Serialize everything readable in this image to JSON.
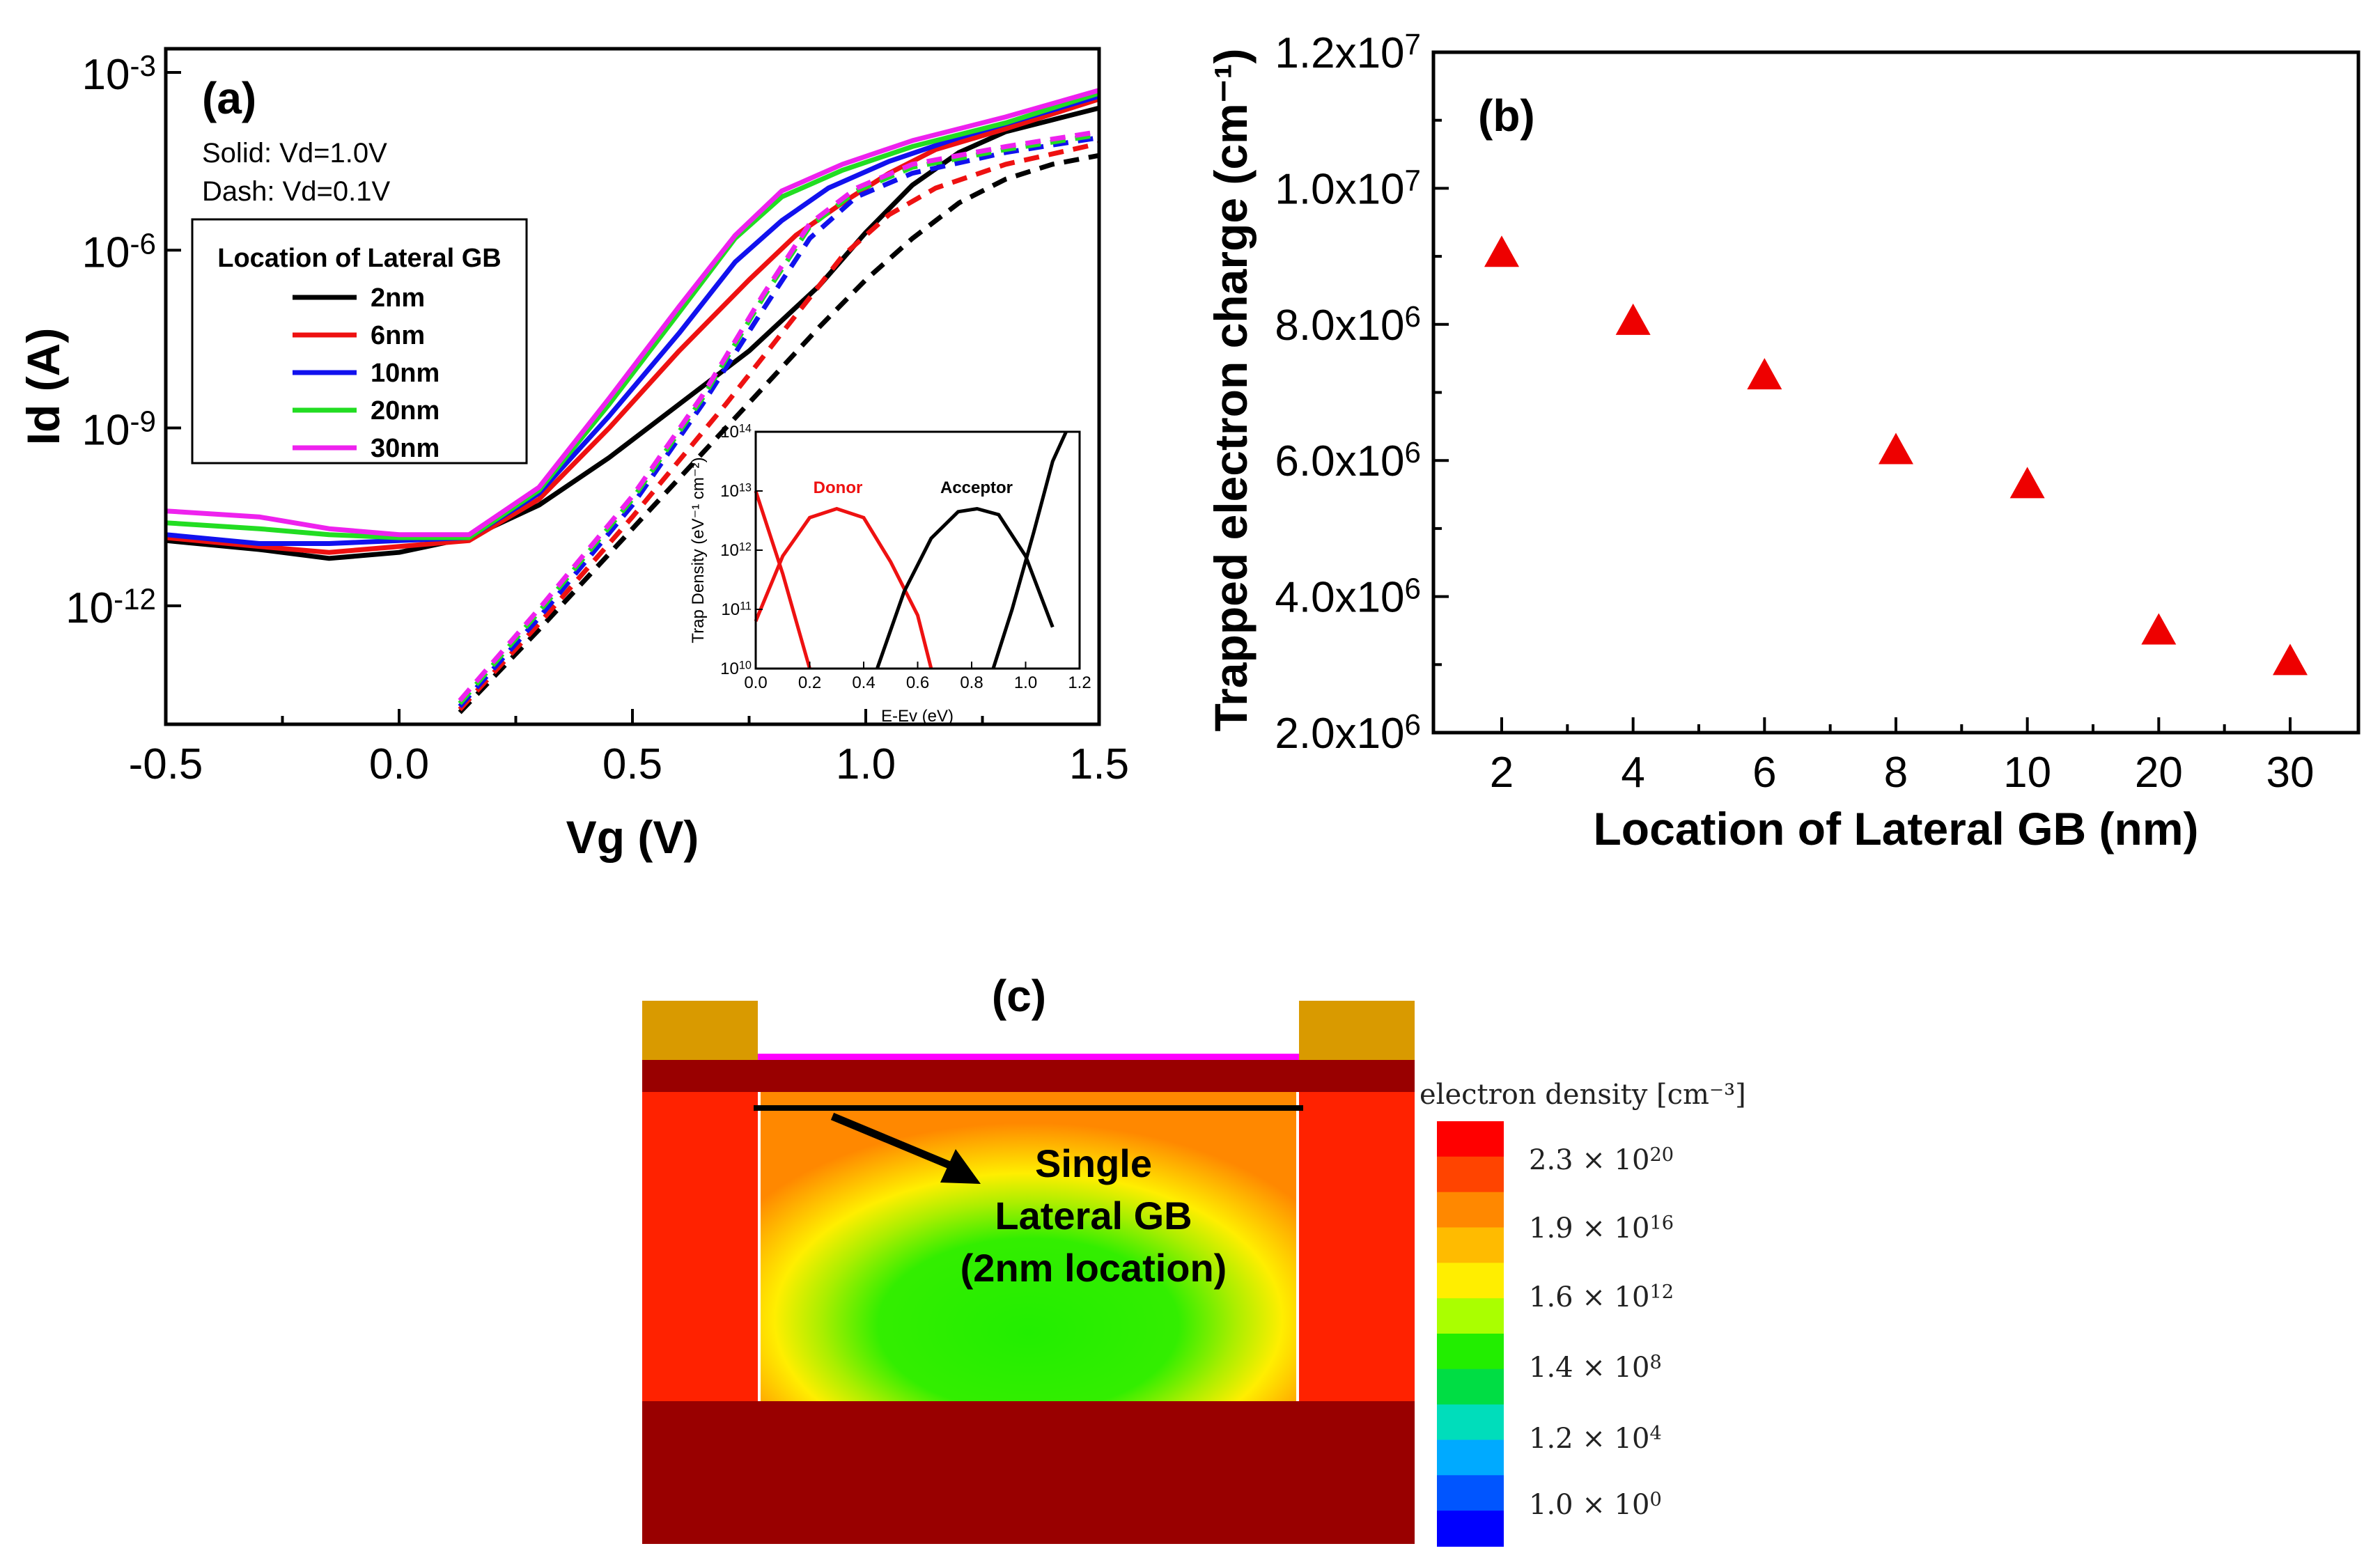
{
  "chart_data": [
    {
      "panel": "(a)",
      "type": "line",
      "xlabel": "Vg (V)",
      "ylabel": "Id (A)",
      "xlim": [
        -0.5,
        1.5
      ],
      "ylim_log10": [
        -14,
        -2.6
      ],
      "yscale": "log",
      "x_ticks": [
        "-0.5",
        "0.0",
        "0.5",
        "1.0",
        "1.5"
      ],
      "y_ticks": [
        {
          "base": "10",
          "exp": "-3"
        },
        {
          "base": "10",
          "exp": "-6"
        },
        {
          "base": "10",
          "exp": "-9"
        },
        {
          "base": "10",
          "exp": "-12"
        }
      ],
      "notes": [
        "Solid: Vd=1.0V",
        "Dash: Vd=0.1V"
      ],
      "legend_title": "Location of Lateral GB",
      "series": [
        {
          "name": "2nm",
          "color": "#000000",
          "solid": [
            [
              -0.5,
              -10.9
            ],
            [
              -0.3,
              -11.05
            ],
            [
              -0.15,
              -11.2
            ],
            [
              0.0,
              -11.1
            ],
            [
              0.15,
              -10.85
            ],
            [
              0.3,
              -10.3
            ],
            [
              0.45,
              -9.5
            ],
            [
              0.6,
              -8.6
            ],
            [
              0.75,
              -7.7
            ],
            [
              0.9,
              -6.6
            ],
            [
              1.0,
              -5.7
            ],
            [
              1.1,
              -4.9
            ],
            [
              1.2,
              -4.35
            ],
            [
              1.3,
              -4.0
            ],
            [
              1.4,
              -3.8
            ],
            [
              1.5,
              -3.6
            ]
          ],
          "dashed": [
            [
              0.13,
              -13.8
            ],
            [
              0.3,
              -12.4
            ],
            [
              0.5,
              -10.7
            ],
            [
              0.7,
              -9.0
            ],
            [
              0.9,
              -7.3
            ],
            [
              1.0,
              -6.5
            ],
            [
              1.1,
              -5.8
            ],
            [
              1.2,
              -5.2
            ],
            [
              1.3,
              -4.8
            ],
            [
              1.4,
              -4.55
            ],
            [
              1.5,
              -4.4
            ]
          ]
        },
        {
          "name": "6nm",
          "color": "#ee1111",
          "solid": [
            [
              -0.5,
              -10.85
            ],
            [
              -0.3,
              -11.0
            ],
            [
              -0.15,
              -11.1
            ],
            [
              0.0,
              -11.0
            ],
            [
              0.15,
              -10.9
            ],
            [
              0.3,
              -10.2
            ],
            [
              0.45,
              -9.0
            ],
            [
              0.6,
              -7.7
            ],
            [
              0.75,
              -6.5
            ],
            [
              0.85,
              -5.75
            ],
            [
              0.95,
              -5.2
            ],
            [
              1.05,
              -4.7
            ],
            [
              1.15,
              -4.3
            ],
            [
              1.3,
              -3.95
            ],
            [
              1.5,
              -3.45
            ]
          ],
          "dashed": [
            [
              0.13,
              -13.75
            ],
            [
              0.3,
              -12.3
            ],
            [
              0.5,
              -10.5
            ],
            [
              0.7,
              -8.6
            ],
            [
              0.85,
              -7.1
            ],
            [
              0.95,
              -6.1
            ],
            [
              1.05,
              -5.4
            ],
            [
              1.15,
              -4.95
            ],
            [
              1.3,
              -4.55
            ],
            [
              1.5,
              -4.2
            ]
          ]
        },
        {
          "name": "10nm",
          "color": "#1111ee",
          "solid": [
            [
              -0.5,
              -10.8
            ],
            [
              -0.3,
              -10.95
            ],
            [
              -0.15,
              -10.95
            ],
            [
              0.0,
              -10.9
            ],
            [
              0.15,
              -10.85
            ],
            [
              0.3,
              -10.1
            ],
            [
              0.45,
              -8.8
            ],
            [
              0.6,
              -7.4
            ],
            [
              0.72,
              -6.2
            ],
            [
              0.82,
              -5.5
            ],
            [
              0.92,
              -4.95
            ],
            [
              1.05,
              -4.5
            ],
            [
              1.2,
              -4.1
            ],
            [
              1.35,
              -3.75
            ],
            [
              1.5,
              -3.4
            ]
          ],
          "dashed": [
            [
              0.13,
              -13.7
            ],
            [
              0.3,
              -12.2
            ],
            [
              0.5,
              -10.3
            ],
            [
              0.65,
              -8.6
            ],
            [
              0.78,
              -7.0
            ],
            [
              0.88,
              -5.8
            ],
            [
              0.98,
              -5.1
            ],
            [
              1.1,
              -4.7
            ],
            [
              1.3,
              -4.35
            ],
            [
              1.5,
              -4.1
            ]
          ]
        },
        {
          "name": "20nm",
          "color": "#22dd22",
          "solid": [
            [
              -0.5,
              -10.6
            ],
            [
              -0.3,
              -10.7
            ],
            [
              -0.15,
              -10.8
            ],
            [
              0.0,
              -10.85
            ],
            [
              0.15,
              -10.85
            ],
            [
              0.3,
              -10.05
            ],
            [
              0.45,
              -8.6
            ],
            [
              0.6,
              -7.05
            ],
            [
              0.72,
              -5.8
            ],
            [
              0.82,
              -5.1
            ],
            [
              0.95,
              -4.65
            ],
            [
              1.1,
              -4.25
            ],
            [
              1.3,
              -3.85
            ],
            [
              1.5,
              -3.35
            ]
          ],
          "dashed": [
            [
              0.13,
              -13.65
            ],
            [
              0.3,
              -12.1
            ],
            [
              0.5,
              -10.2
            ],
            [
              0.65,
              -8.5
            ],
            [
              0.78,
              -6.8
            ],
            [
              0.88,
              -5.6
            ],
            [
              0.98,
              -5.0
            ],
            [
              1.1,
              -4.6
            ],
            [
              1.3,
              -4.3
            ],
            [
              1.5,
              -4.05
            ]
          ]
        },
        {
          "name": "30nm",
          "color": "#ee22ee",
          "solid": [
            [
              -0.5,
              -10.4
            ],
            [
              -0.3,
              -10.5
            ],
            [
              -0.15,
              -10.7
            ],
            [
              0.0,
              -10.8
            ],
            [
              0.15,
              -10.8
            ],
            [
              0.3,
              -10.0
            ],
            [
              0.45,
              -8.5
            ],
            [
              0.6,
              -6.95
            ],
            [
              0.72,
              -5.75
            ],
            [
              0.82,
              -5.0
            ],
            [
              0.95,
              -4.55
            ],
            [
              1.1,
              -4.15
            ],
            [
              1.3,
              -3.75
            ],
            [
              1.5,
              -3.3
            ]
          ],
          "dashed": [
            [
              0.13,
              -13.6
            ],
            [
              0.3,
              -12.05
            ],
            [
              0.5,
              -10.15
            ],
            [
              0.65,
              -8.45
            ],
            [
              0.78,
              -6.75
            ],
            [
              0.88,
              -5.55
            ],
            [
              0.98,
              -4.95
            ],
            [
              1.1,
              -4.55
            ],
            [
              1.3,
              -4.25
            ],
            [
              1.5,
              -4.0
            ]
          ]
        }
      ],
      "inset": {
        "xlabel": "E-Ev (eV)",
        "ylabel": "Trap Density",
        "ylabel_units": "(eV⁻¹ cm⁻²)",
        "xlim": [
          0.0,
          1.2
        ],
        "ylim_log10": [
          10,
          14
        ],
        "x_ticks": [
          "0.0",
          "0.2",
          "0.4",
          "0.6",
          "0.8",
          "1.0",
          "1.2"
        ],
        "y_ticks": [
          {
            "base": "10",
            "exp": "10"
          },
          {
            "base": "10",
            "exp": "11"
          },
          {
            "base": "10",
            "exp": "12"
          },
          {
            "base": "10",
            "exp": "13"
          },
          {
            "base": "10",
            "exp": "14"
          }
        ],
        "donor_label": "Donor",
        "acceptor_label": "Acceptor",
        "donor_color": "#ee1111",
        "acceptor_color": "#000000",
        "donor_curves": [
          [
            [
              0.0,
              13.0
            ],
            [
              0.05,
              12.3
            ],
            [
              0.1,
              11.6
            ],
            [
              0.15,
              10.8
            ],
            [
              0.2,
              10.0
            ]
          ],
          [
            [
              0.0,
              10.8
            ],
            [
              0.1,
              11.9
            ],
            [
              0.2,
              12.55
            ],
            [
              0.3,
              12.7
            ],
            [
              0.4,
              12.55
            ],
            [
              0.5,
              11.8
            ],
            [
              0.6,
              10.9
            ],
            [
              0.65,
              10.0
            ]
          ]
        ],
        "acceptor_curves": [
          [
            [
              0.45,
              10.0
            ],
            [
              0.55,
              11.3
            ],
            [
              0.65,
              12.2
            ],
            [
              0.75,
              12.65
            ],
            [
              0.82,
              12.7
            ],
            [
              0.9,
              12.6
            ],
            [
              1.0,
              11.9
            ],
            [
              1.1,
              10.7
            ]
          ],
          [
            [
              0.88,
              10.0
            ],
            [
              0.95,
              11.0
            ],
            [
              1.03,
              12.3
            ],
            [
              1.1,
              13.5
            ],
            [
              1.15,
              14.0
            ]
          ]
        ]
      }
    },
    {
      "panel": "(b)",
      "type": "scatter",
      "xlabel": "Location of Lateral GB (nm)",
      "ylabel": "Trapped electron charge",
      "ylabel_units": "(cm⁻¹)",
      "categories": [
        "2",
        "4",
        "6",
        "8",
        "10",
        "20",
        "30"
      ],
      "values": [
        9050000,
        8050000,
        7250000,
        6150000,
        5650000,
        3500000,
        3050000
      ],
      "ylim": [
        2000000,
        12000000
      ],
      "y_ticks": [
        {
          "value": 2000000,
          "mant": "2.0x10",
          "exp": "6"
        },
        {
          "value": 4000000,
          "mant": "4.0x10",
          "exp": "6"
        },
        {
          "value": 6000000,
          "mant": "6.0x10",
          "exp": "6"
        },
        {
          "value": 8000000,
          "mant": "8.0x10",
          "exp": "6"
        },
        {
          "value": 10000000,
          "mant": "1.0x10",
          "exp": "7"
        },
        {
          "value": 12000000,
          "mant": "1.2x10",
          "exp": "7"
        }
      ],
      "marker_color": "#ee0000"
    },
    {
      "panel": "(c)",
      "type": "heatmap",
      "colorbar_title": "electron density [cm⁻³]",
      "colorbar_labels": [
        {
          "mant": "2.3 × 10",
          "exp": "20"
        },
        {
          "mant": "1.9 × 10",
          "exp": "16"
        },
        {
          "mant": "1.6 × 10",
          "exp": "12"
        },
        {
          "mant": "1.4 × 10",
          "exp": "8"
        },
        {
          "mant": "1.2 × 10",
          "exp": "4"
        },
        {
          "mant": "1.0 × 10",
          "exp": "0"
        }
      ],
      "colorbar_colors": [
        "#ff0000",
        "#ff4400",
        "#ff8800",
        "#ffbb00",
        "#ffee00",
        "#aaff00",
        "#22ee00",
        "#00dd44",
        "#00ddbb",
        "#00aaff",
        "#0055ff",
        "#0000ff"
      ],
      "annotation": [
        "Single",
        "Lateral GB",
        "(2nm location)"
      ]
    }
  ]
}
